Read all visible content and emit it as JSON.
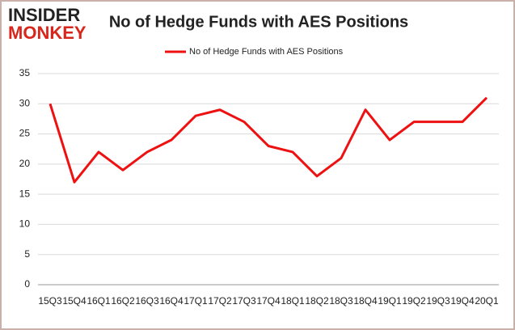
{
  "logo": {
    "line1": "INSIDER",
    "line2": "MONKEY"
  },
  "chart_data": {
    "type": "line",
    "title": "No of Hedge Funds with AES Positions",
    "categories": [
      "15Q3",
      "15Q4",
      "16Q1",
      "16Q2",
      "16Q3",
      "16Q4",
      "17Q1",
      "17Q2",
      "17Q3",
      "17Q4",
      "18Q1",
      "18Q2",
      "18Q3",
      "18Q4",
      "19Q1",
      "19Q2",
      "19Q3",
      "19Q4",
      "20Q1"
    ],
    "series": [
      {
        "name": "No of Hedge Funds with AES Positions",
        "color": "#ee1111",
        "values": [
          30,
          17,
          22,
          19,
          22,
          24,
          28,
          29,
          27,
          23,
          22,
          18,
          21,
          29,
          24,
          27,
          27,
          27,
          31
        ]
      }
    ],
    "ylim": [
      0,
      35
    ],
    "yticks": [
      0,
      5,
      10,
      15,
      20,
      25,
      30,
      35
    ],
    "grid": true,
    "legend": "top"
  }
}
